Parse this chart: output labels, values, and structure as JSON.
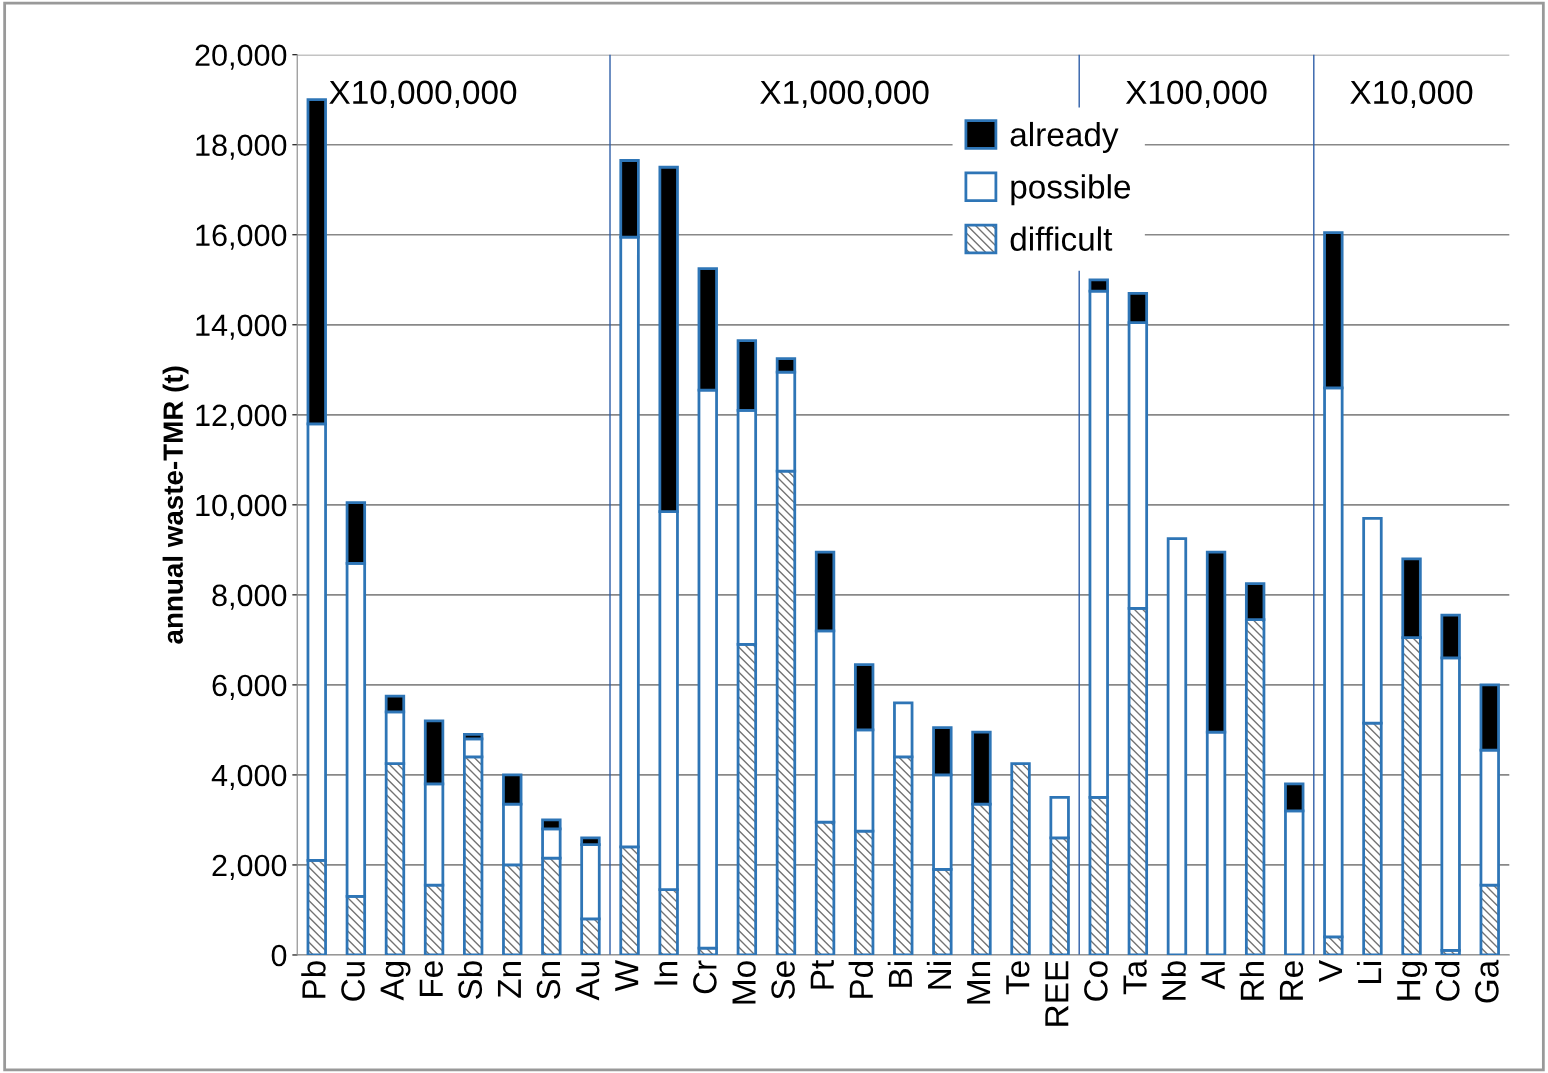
{
  "chart_data": {
    "type": "bar",
    "stacked": true,
    "ylabel": "annual waste-TMR (t)",
    "categories": [
      "Pb",
      "Cu",
      "Ag",
      "Fe",
      "Sb",
      "Zn",
      "Sn",
      "Au",
      "W",
      "In",
      "Cr",
      "Mo",
      "Se",
      "Pt",
      "Pd",
      "Bi",
      "Ni",
      "Mn",
      "Te",
      "REE",
      "Co",
      "Ta",
      "Nb",
      "Al",
      "Rh",
      "Re",
      "V",
      "Li",
      "Hg",
      "Cd",
      "Ga"
    ],
    "series": [
      {
        "name": "difficult",
        "color": "#2e75b6",
        "values": [
          2100,
          1300,
          4250,
          1550,
          4400,
          2000,
          2150,
          800,
          2400,
          1450,
          150,
          6900,
          10750,
          2950,
          2750,
          4400,
          1900,
          3350,
          4250,
          2600,
          3500,
          7700,
          0,
          0,
          7450,
          0,
          400,
          5150,
          7050,
          100,
          1550
        ]
      },
      {
        "name": "possible",
        "color": "#ffffff",
        "values": [
          9700,
          7400,
          1150,
          2250,
          400,
          1350,
          650,
          1650,
          13550,
          8400,
          12400,
          5200,
          2200,
          4250,
          2250,
          1200,
          2100,
          0,
          0,
          900,
          11250,
          6350,
          9250,
          4950,
          0,
          3200,
          12200,
          4550,
          0,
          6500,
          3000
        ]
      },
      {
        "name": "already",
        "color": "#000000",
        "values": [
          7200,
          1350,
          350,
          1400,
          100,
          650,
          200,
          150,
          1700,
          7650,
          2700,
          1550,
          300,
          1750,
          1450,
          0,
          1050,
          1600,
          0,
          0,
          250,
          650,
          0,
          4000,
          800,
          600,
          3450,
          0,
          1750,
          950,
          1450
        ]
      }
    ],
    "ylim": [
      0,
      20000
    ],
    "yticks": [
      {
        "value": 0,
        "label": "0"
      },
      {
        "value": 2000,
        "label": "2,000"
      },
      {
        "value": 4000,
        "label": "4,000"
      },
      {
        "value": 6000,
        "label": "6,000"
      },
      {
        "value": 8000,
        "label": "8,000"
      },
      {
        "value": 10000,
        "label": "10,000"
      },
      {
        "value": 12000,
        "label": "12,000"
      },
      {
        "value": 14000,
        "label": "14,000"
      },
      {
        "value": 16000,
        "label": "16,000"
      },
      {
        "value": 18000,
        "label": "18,000"
      },
      {
        "value": 20000,
        "label": "20,000"
      }
    ],
    "annotations": [
      "X10,000,000",
      "X1,000,000",
      "X100,000",
      "X10,000"
    ],
    "grid": "y",
    "legend": "top"
  }
}
